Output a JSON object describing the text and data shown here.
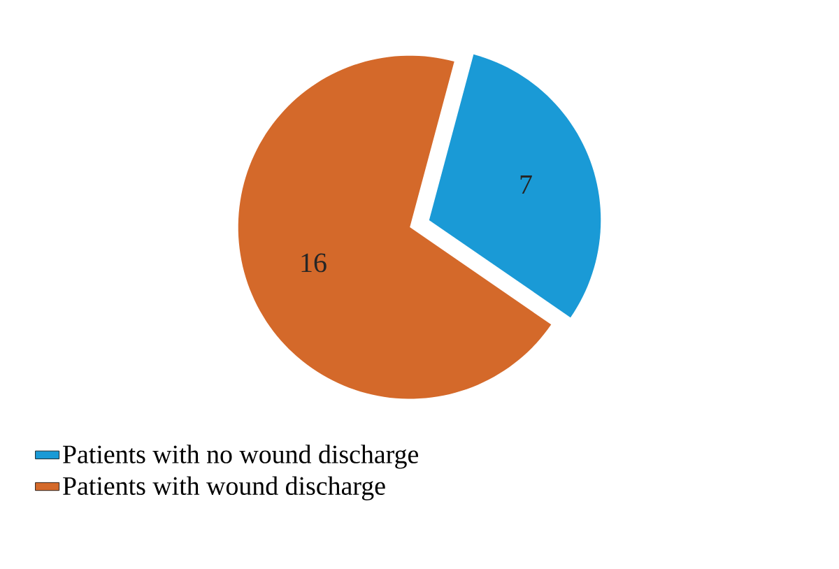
{
  "chart_data": {
    "type": "pie",
    "categories": [
      "Patients with no wound discharge",
      "Patients with wound discharge"
    ],
    "values": [
      7,
      16
    ],
    "colors": [
      "#1a9ad6",
      "#d4692a"
    ],
    "data_labels": true,
    "legend": "bottom left"
  }
}
